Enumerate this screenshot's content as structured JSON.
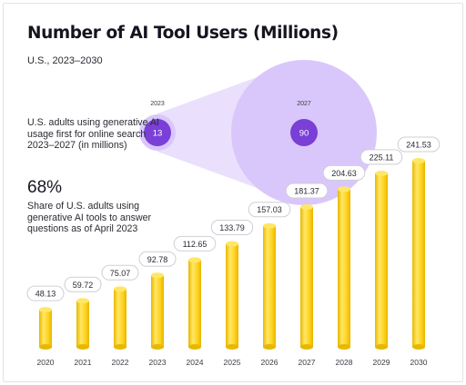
{
  "title": "Number of AI Tool Users (Millions)",
  "subtitle": "U.S., 2023–2030",
  "annotation": {
    "text": "U.S. adults using generative AI usage first for online search 2023–2027 (in millions)",
    "circles": [
      {
        "label": "2023",
        "value": "13"
      },
      {
        "label": "2027",
        "value": "90"
      }
    ]
  },
  "stat": {
    "value": "68%",
    "text": "Share of U.S. adults using generative AI tools to answer questions as of April 2023"
  },
  "colors": {
    "bar": "#FFD21F",
    "bar_light": "#FFE766",
    "bar_shadow": "#E8B700",
    "circle_fill": "#D9C7FB",
    "circle_dark": "#7A3FD6",
    "label_border": "#cfcfd6"
  },
  "chart_data": {
    "type": "bar",
    "title": "Number of AI Tool Users (Millions)",
    "subtitle": "U.S., 2023–2030",
    "categories": [
      "2020",
      "2021",
      "2022",
      "2023",
      "2024",
      "2025",
      "2026",
      "2027",
      "2028",
      "2029",
      "2030"
    ],
    "values": [
      48.13,
      59.72,
      75.07,
      92.78,
      112.65,
      133.79,
      157.03,
      181.37,
      204.63,
      225.11,
      241.53
    ],
    "value_labels": [
      "48.13",
      "59.72",
      "75.07",
      "92.78",
      "112.65",
      "133.79",
      "157.03",
      "181.37",
      "204.63",
      "225.11",
      "241.53"
    ],
    "xlabel": "",
    "ylabel": "",
    "grid": false,
    "legend": "none"
  }
}
